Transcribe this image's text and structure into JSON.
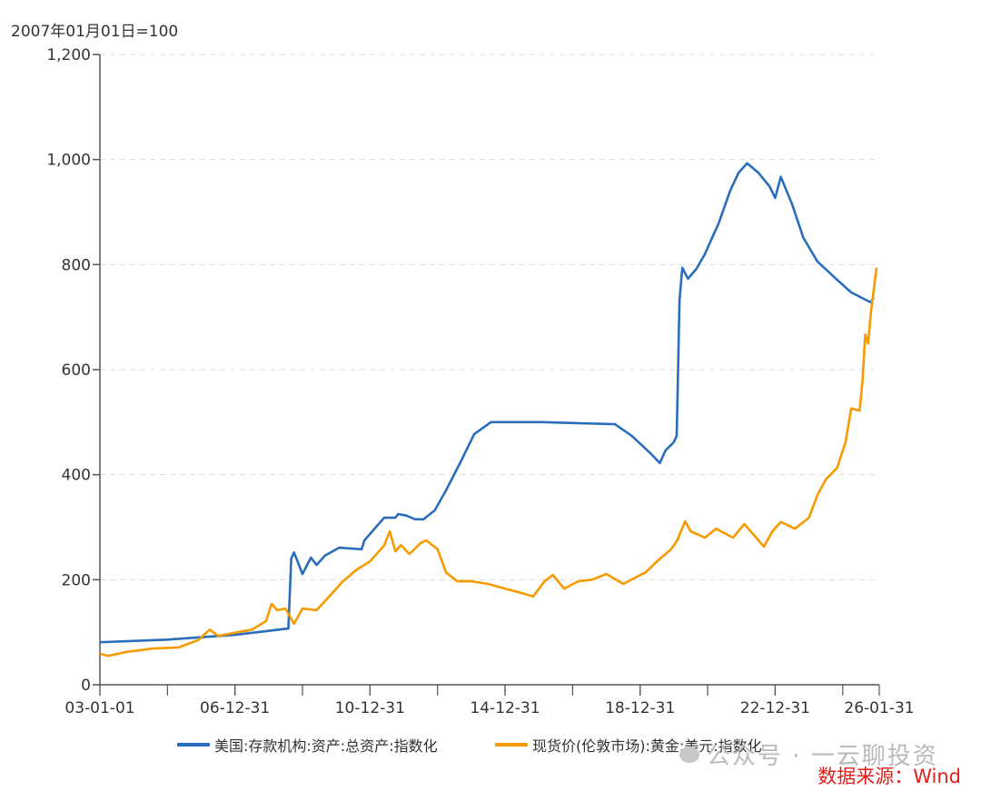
{
  "chart_data": {
    "type": "line",
    "title": "",
    "unit_label": "2007年01月01日=100",
    "xlabel": "",
    "ylabel": "",
    "ylim": [
      0,
      1200
    ],
    "yticks": [
      0,
      200,
      400,
      600,
      800,
      1000,
      1200
    ],
    "ytick_labels": [
      "0",
      "200",
      "400",
      "600",
      "800",
      "1,000",
      "1,200"
    ],
    "xlim": [
      "2003-01-01",
      "2026-01-31"
    ],
    "xticks": [
      {
        "date": "2003-01-01",
        "label": "03-01-01"
      },
      {
        "date": "2006-12-31",
        "label": "06-12-31"
      },
      {
        "date": "2010-12-31",
        "label": "10-12-31"
      },
      {
        "date": "2014-12-31",
        "label": "14-12-31"
      },
      {
        "date": "2018-12-31",
        "label": "18-12-31"
      },
      {
        "date": "2022-12-31",
        "label": "22-12-31"
      },
      {
        "date": "2026-01-31",
        "label": "26-01-31"
      }
    ],
    "grid": "horizontal-dashed",
    "legend_position": "bottom",
    "series": [
      {
        "name": "美国:存款机构:资产:总资产:指数化",
        "color": "#2a6ebb",
        "points": [
          [
            "2003-01",
            81
          ],
          [
            "2005-01",
            86
          ],
          [
            "2007-01",
            95
          ],
          [
            "2008-08",
            107
          ],
          [
            "2008-09",
            240
          ],
          [
            "2008-10",
            252
          ],
          [
            "2009-01",
            211
          ],
          [
            "2009-04",
            242
          ],
          [
            "2009-06",
            228
          ],
          [
            "2009-09",
            246
          ],
          [
            "2010-02",
            261
          ],
          [
            "2010-10",
            258
          ],
          [
            "2010-11",
            275
          ],
          [
            "2011-06",
            318
          ],
          [
            "2011-10",
            318
          ],
          [
            "2011-11",
            325
          ],
          [
            "2012-02",
            322
          ],
          [
            "2012-05",
            315
          ],
          [
            "2012-08",
            315
          ],
          [
            "2012-12",
            332
          ],
          [
            "2013-04",
            370
          ],
          [
            "2013-09",
            422
          ],
          [
            "2014-02",
            477
          ],
          [
            "2014-08",
            500
          ],
          [
            "2015-01",
            500
          ],
          [
            "2016-02",
            500
          ],
          [
            "2017-03",
            498
          ],
          [
            "2018-04",
            496
          ],
          [
            "2018-10",
            474
          ],
          [
            "2019-05",
            439
          ],
          [
            "2019-08",
            422
          ],
          [
            "2019-10",
            446
          ],
          [
            "2020-01",
            462
          ],
          [
            "2020-02",
            474
          ],
          [
            "2020-03",
            733
          ],
          [
            "2020-04",
            794
          ],
          [
            "2020-06",
            773
          ],
          [
            "2020-09",
            792
          ],
          [
            "2020-12",
            820
          ],
          [
            "2021-05",
            880
          ],
          [
            "2021-09",
            941
          ],
          [
            "2021-12",
            975
          ],
          [
            "2022-03",
            993
          ],
          [
            "2022-07",
            975
          ],
          [
            "2022-11",
            949
          ],
          [
            "2023-01",
            927
          ],
          [
            "2023-03",
            967
          ],
          [
            "2023-07",
            915
          ],
          [
            "2023-11",
            851
          ],
          [
            "2024-04",
            806
          ],
          [
            "2024-11",
            771
          ],
          [
            "2025-04",
            747
          ],
          [
            "2025-11",
            728
          ],
          [
            "2025-12",
            737
          ]
        ]
      },
      {
        "name": "现货价(伦敦市场):黄金:美元:指数化",
        "color": "#f59b00",
        "points": [
          [
            "2003-01",
            59
          ],
          [
            "2003-04",
            55
          ],
          [
            "2003-10",
            62
          ],
          [
            "2004-08",
            69
          ],
          [
            "2005-05",
            71
          ],
          [
            "2005-12",
            85
          ],
          [
            "2006-04",
            105
          ],
          [
            "2006-07",
            93
          ],
          [
            "2007-01",
            99
          ],
          [
            "2007-07",
            105
          ],
          [
            "2007-12",
            121
          ],
          [
            "2008-02",
            154
          ],
          [
            "2008-04",
            142
          ],
          [
            "2008-07",
            145
          ],
          [
            "2008-10",
            116
          ],
          [
            "2009-01",
            145
          ],
          [
            "2009-06",
            142
          ],
          [
            "2009-11",
            171
          ],
          [
            "2010-03",
            195
          ],
          [
            "2010-08",
            218
          ],
          [
            "2011-01",
            235
          ],
          [
            "2011-06",
            265
          ],
          [
            "2011-08",
            292
          ],
          [
            "2011-10",
            254
          ],
          [
            "2011-12",
            266
          ],
          [
            "2012-03",
            249
          ],
          [
            "2012-07",
            270
          ],
          [
            "2012-09",
            275
          ],
          [
            "2013-01",
            258
          ],
          [
            "2013-04",
            214
          ],
          [
            "2013-08",
            197
          ],
          [
            "2014-01",
            197
          ],
          [
            "2014-07",
            192
          ],
          [
            "2015-01",
            183
          ],
          [
            "2015-06",
            176
          ],
          [
            "2015-11",
            168
          ],
          [
            "2016-03",
            197
          ],
          [
            "2016-06",
            209
          ],
          [
            "2016-10",
            183
          ],
          [
            "2017-03",
            197
          ],
          [
            "2017-08",
            200
          ],
          [
            "2018-01",
            211
          ],
          [
            "2018-07",
            192
          ],
          [
            "2018-12",
            206
          ],
          [
            "2019-03",
            214
          ],
          [
            "2019-07",
            235
          ],
          [
            "2019-12",
            258
          ],
          [
            "2020-02",
            273
          ],
          [
            "2020-05",
            311
          ],
          [
            "2020-07",
            292
          ],
          [
            "2020-12",
            280
          ],
          [
            "2021-04",
            297
          ],
          [
            "2021-10",
            280
          ],
          [
            "2022-02",
            306
          ],
          [
            "2022-09",
            263
          ],
          [
            "2022-12",
            292
          ],
          [
            "2023-03",
            310
          ],
          [
            "2023-08",
            297
          ],
          [
            "2024-01",
            318
          ],
          [
            "2024-04",
            361
          ],
          [
            "2024-07",
            391
          ],
          [
            "2024-11",
            413
          ],
          [
            "2025-02",
            462
          ],
          [
            "2025-04",
            526
          ],
          [
            "2025-07",
            522
          ],
          [
            "2025-08",
            578
          ],
          [
            "2025-09",
            667
          ],
          [
            "2025-10",
            650
          ],
          [
            "2025-11",
            707
          ],
          [
            "2026-01",
            794
          ]
        ]
      }
    ]
  },
  "watermark": "公众号 · 一云聊投资",
  "source": "数据来源：Wind"
}
